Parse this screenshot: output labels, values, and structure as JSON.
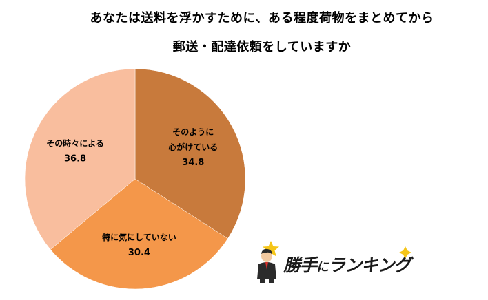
{
  "chart_data": {
    "type": "pie",
    "title_lines": [
      "あなたは送料を浮かすために、ある程度荷物をまとめてから",
      "郵送・配達依頼をしていますか"
    ],
    "slices": [
      {
        "label_lines": [
          "そのように",
          "心がけている"
        ],
        "value": 34.8,
        "color": "#C87A3C"
      },
      {
        "label_lines": [
          "特に気にしていない"
        ],
        "value": 30.4,
        "color": "#F4974A"
      },
      {
        "label_lines": [
          "その時々による"
        ],
        "value": 36.8,
        "color": "#F9BE9E"
      }
    ],
    "start_angle_deg": 0,
    "direction": "clockwise",
    "legend": "none",
    "value_labels": "inside"
  },
  "logo": {
    "text_main": "勝手",
    "text_small": "に",
    "text_end": "ランキング",
    "colors": {
      "star": "#F5C518",
      "suit": "#2b2b2b",
      "skin": "#F2C9A0"
    }
  }
}
